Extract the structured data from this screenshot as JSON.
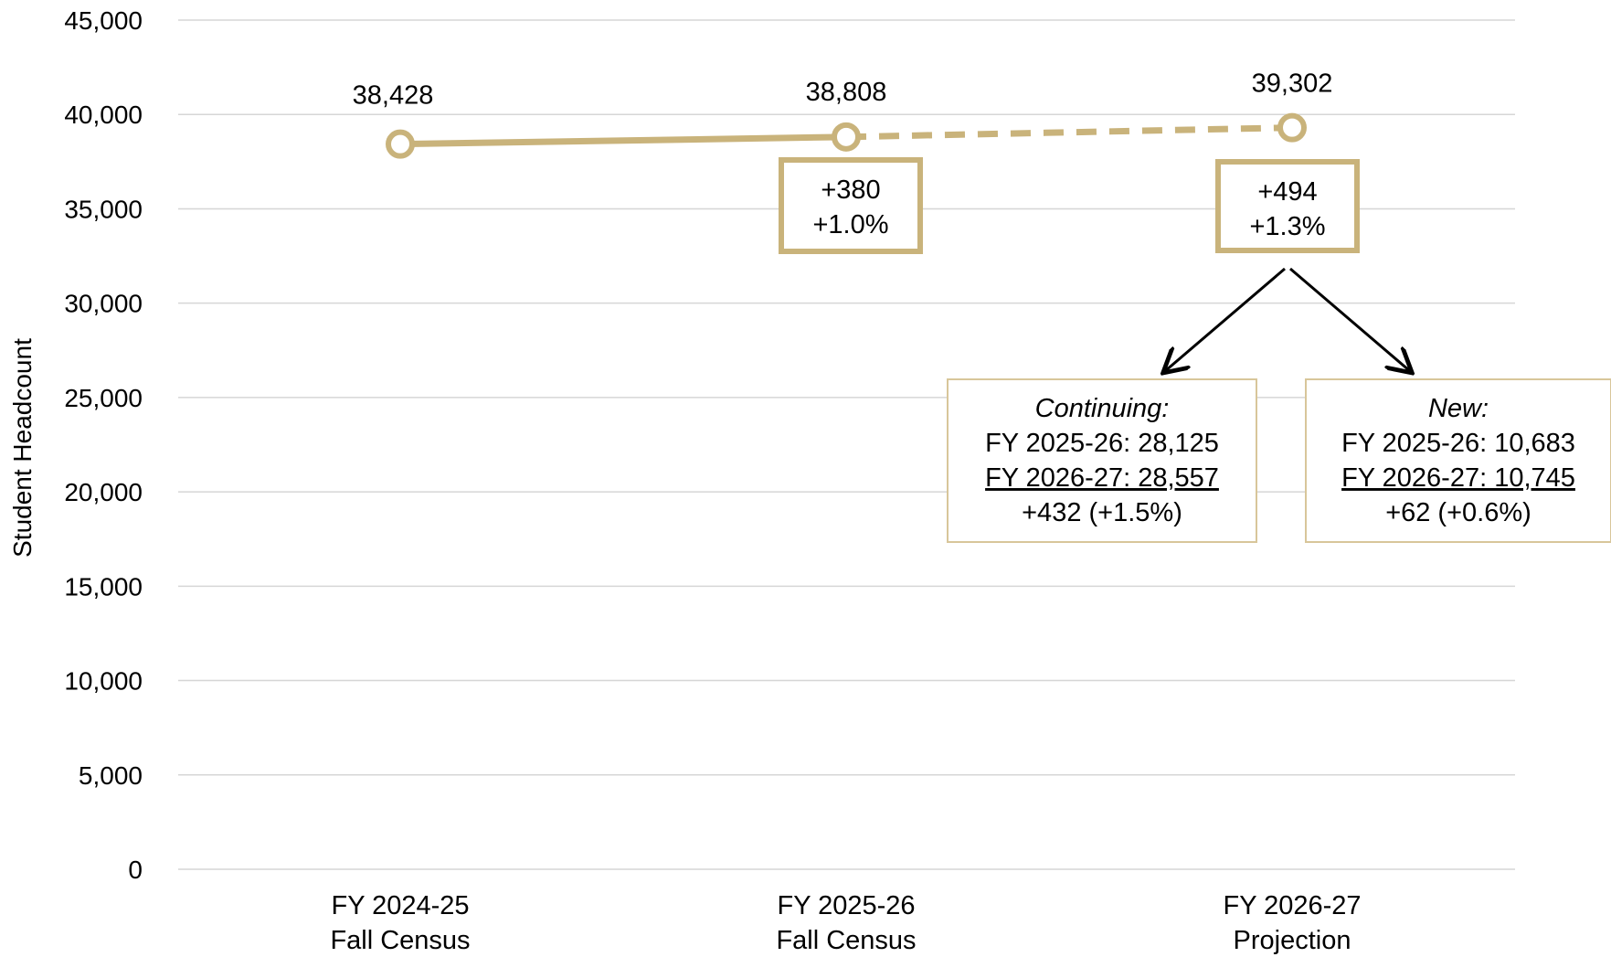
{
  "chart_data": {
    "type": "line",
    "ylabel": "Student Headcount",
    "xlabel": "",
    "ylim": [
      0,
      45000
    ],
    "yticks": [
      0,
      5000,
      10000,
      15000,
      20000,
      25000,
      30000,
      35000,
      40000,
      45000
    ],
    "ytick_labels": [
      "0",
      "5,000",
      "10,000",
      "15,000",
      "20,000",
      "25,000",
      "30,000",
      "35,000",
      "40,000",
      "45,000"
    ],
    "categories": [
      [
        "FY 2024-25",
        "Fall Census"
      ],
      [
        "FY 2025-26",
        "Fall Census"
      ],
      [
        "FY 2026-27",
        "Projection"
      ]
    ],
    "values": [
      38428,
      38808,
      39302
    ],
    "data_labels": [
      "38,428",
      "38,808",
      "39,302"
    ],
    "line_styles": [
      "solid",
      "dashed"
    ],
    "grid": true,
    "colors": {
      "series": "#C9B37B",
      "grid": "#d6d6d6",
      "callout_border": "#D8C69A",
      "arrow": "#000000"
    },
    "change_boxes": [
      {
        "at": 1,
        "lines": [
          "+380",
          "+1.0%"
        ]
      },
      {
        "at": 2,
        "lines": [
          "+494",
          "+1.3%"
        ]
      }
    ],
    "callouts": [
      {
        "title": "Continuing:",
        "lines": [
          "FY 2025-26: 28,125",
          "FY 2026-27: 28,557",
          "+432 (+1.5%)"
        ],
        "underline_line": 1
      },
      {
        "title": "New:",
        "lines": [
          "FY 2025-26: 10,683",
          "FY 2026-27: 10,745",
          "+62 (+0.6%)"
        ],
        "underline_line": 1
      }
    ]
  }
}
